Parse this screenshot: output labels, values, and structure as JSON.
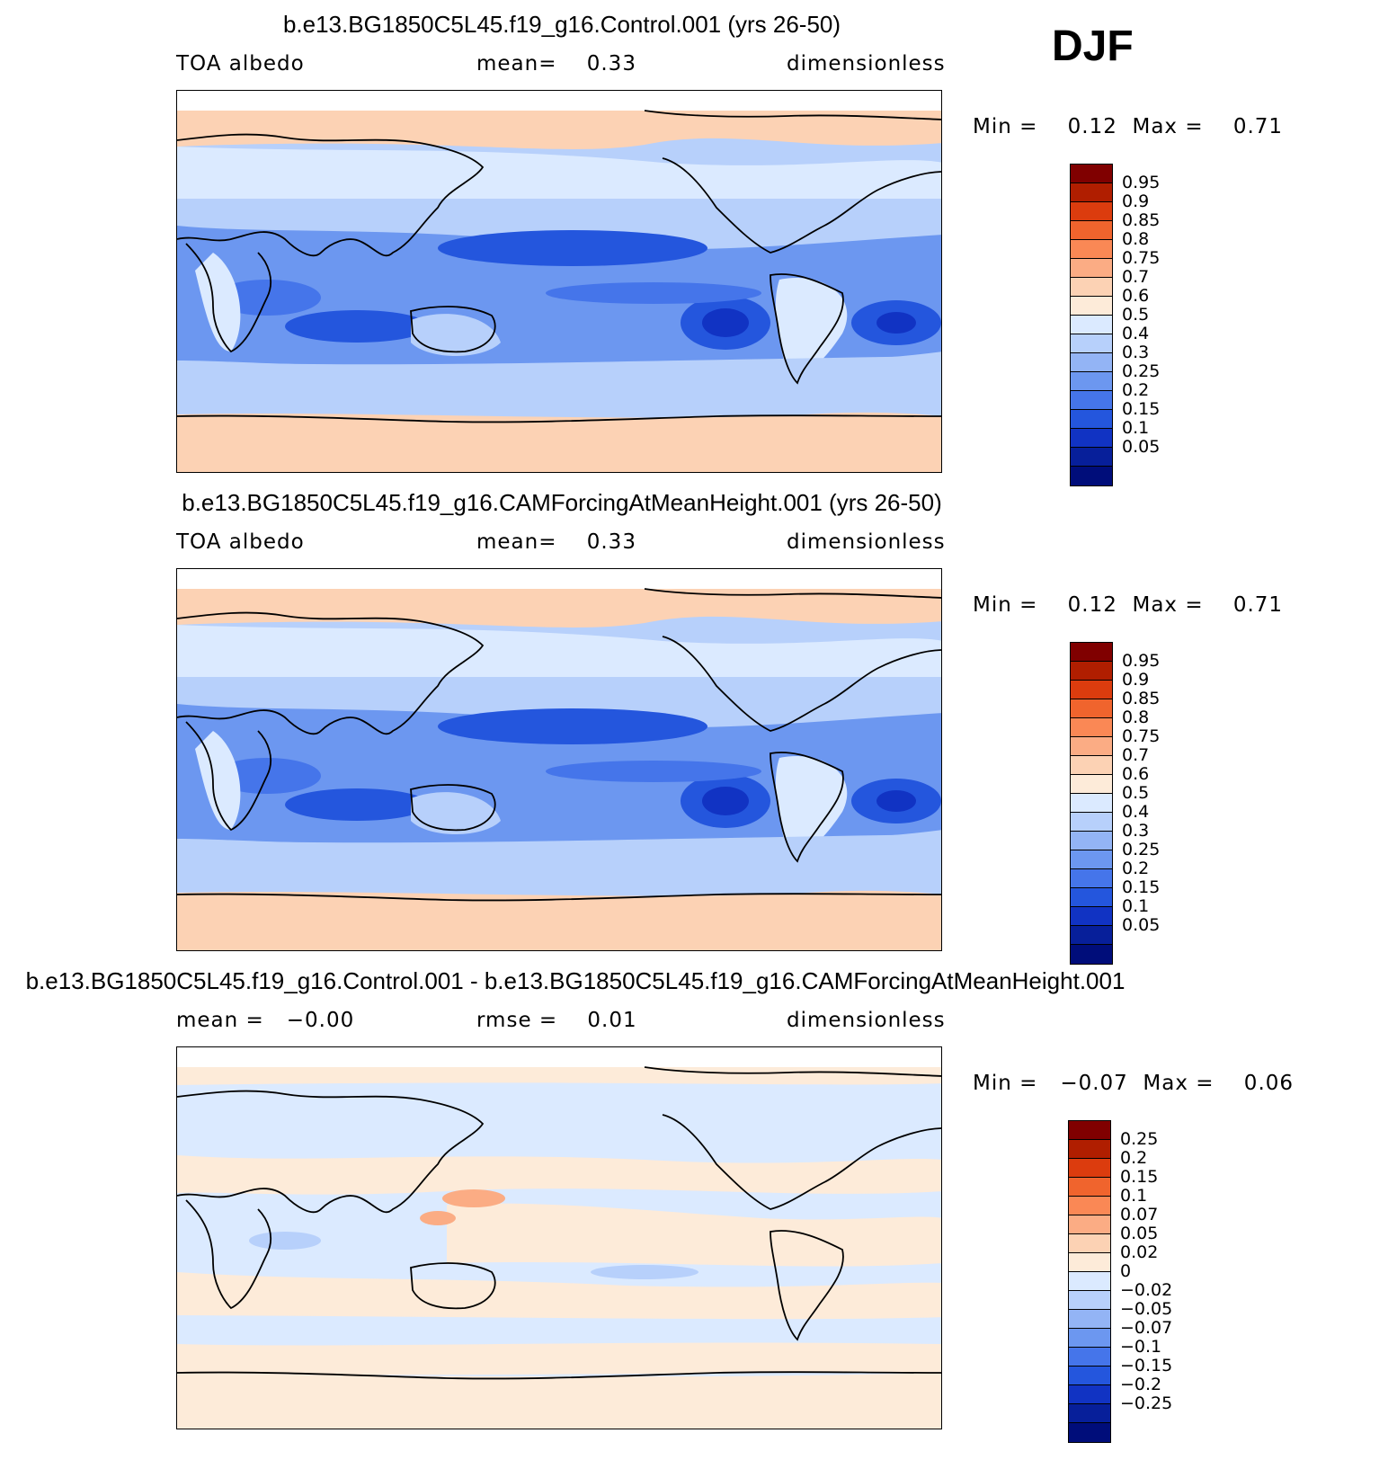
{
  "season": "DJF",
  "panels": [
    {
      "title": "b.e13.BG1850C5L45.f19_g16.Control.001 (yrs 26-50)",
      "left_label": "TOA albedo",
      "mid_label": "mean=    0.33",
      "right_label": "dimensionless",
      "minmax": "Min =    0.12  Max =    0.71",
      "colorbar": {
        "colors": [
          "#800000",
          "#b01e00",
          "#dc3c0e",
          "#f0642d",
          "#fa8855",
          "#fbac84",
          "#fcd2b4",
          "#fdebd9",
          "#dbeaff",
          "#b7d0fb",
          "#93b4f5",
          "#6c97f0",
          "#4575ea",
          "#2456dd",
          "#1133c3",
          "#071f9a",
          "#000d7a"
        ],
        "labels": [
          "0.95",
          "0.9",
          "0.85",
          "0.8",
          "0.75",
          "0.7",
          "0.6",
          "0.5",
          "0.4",
          "0.3",
          "0.25",
          "0.2",
          "0.15",
          "0.1",
          "0.05"
        ]
      }
    },
    {
      "title": "b.e13.BG1850C5L45.f19_g16.CAMForcingAtMeanHeight.001 (yrs 26-50)",
      "left_label": "TOA albedo",
      "mid_label": "mean=    0.33",
      "right_label": "dimensionless",
      "minmax": "Min =    0.12  Max =    0.71",
      "colorbar": {
        "colors": [
          "#800000",
          "#b01e00",
          "#dc3c0e",
          "#f0642d",
          "#fa8855",
          "#fbac84",
          "#fcd2b4",
          "#fdebd9",
          "#dbeaff",
          "#b7d0fb",
          "#93b4f5",
          "#6c97f0",
          "#4575ea",
          "#2456dd",
          "#1133c3",
          "#071f9a",
          "#000d7a"
        ],
        "labels": [
          "0.95",
          "0.9",
          "0.85",
          "0.8",
          "0.75",
          "0.7",
          "0.6",
          "0.5",
          "0.4",
          "0.3",
          "0.25",
          "0.2",
          "0.15",
          "0.1",
          "0.05"
        ]
      }
    },
    {
      "title": "b.e13.BG1850C5L45.f19_g16.Control.001 - b.e13.BG1850C5L45.f19_g16.CAMForcingAtMeanHeight.001",
      "left_label": "mean =   −0.00",
      "mid_label": "rmse =    0.01",
      "right_label": "dimensionless",
      "minmax": "Min =   −0.07  Max =    0.06",
      "colorbar": {
        "colors": [
          "#800000",
          "#b01e00",
          "#dc3c0e",
          "#f0642d",
          "#fa8855",
          "#fbac84",
          "#fcd2b4",
          "#fdebd9",
          "#dbeaff",
          "#b7d0fb",
          "#93b4f5",
          "#6c97f0",
          "#4575ea",
          "#2456dd",
          "#1133c3",
          "#071f9a",
          "#000d7a"
        ],
        "labels": [
          "0.25",
          "0.2",
          "0.15",
          "0.1",
          "0.07",
          "0.05",
          "0.02",
          "0",
          "−0.02",
          "−0.05",
          "−0.07",
          "−0.1",
          "−0.15",
          "−0.2",
          "−0.25"
        ]
      }
    }
  ]
}
